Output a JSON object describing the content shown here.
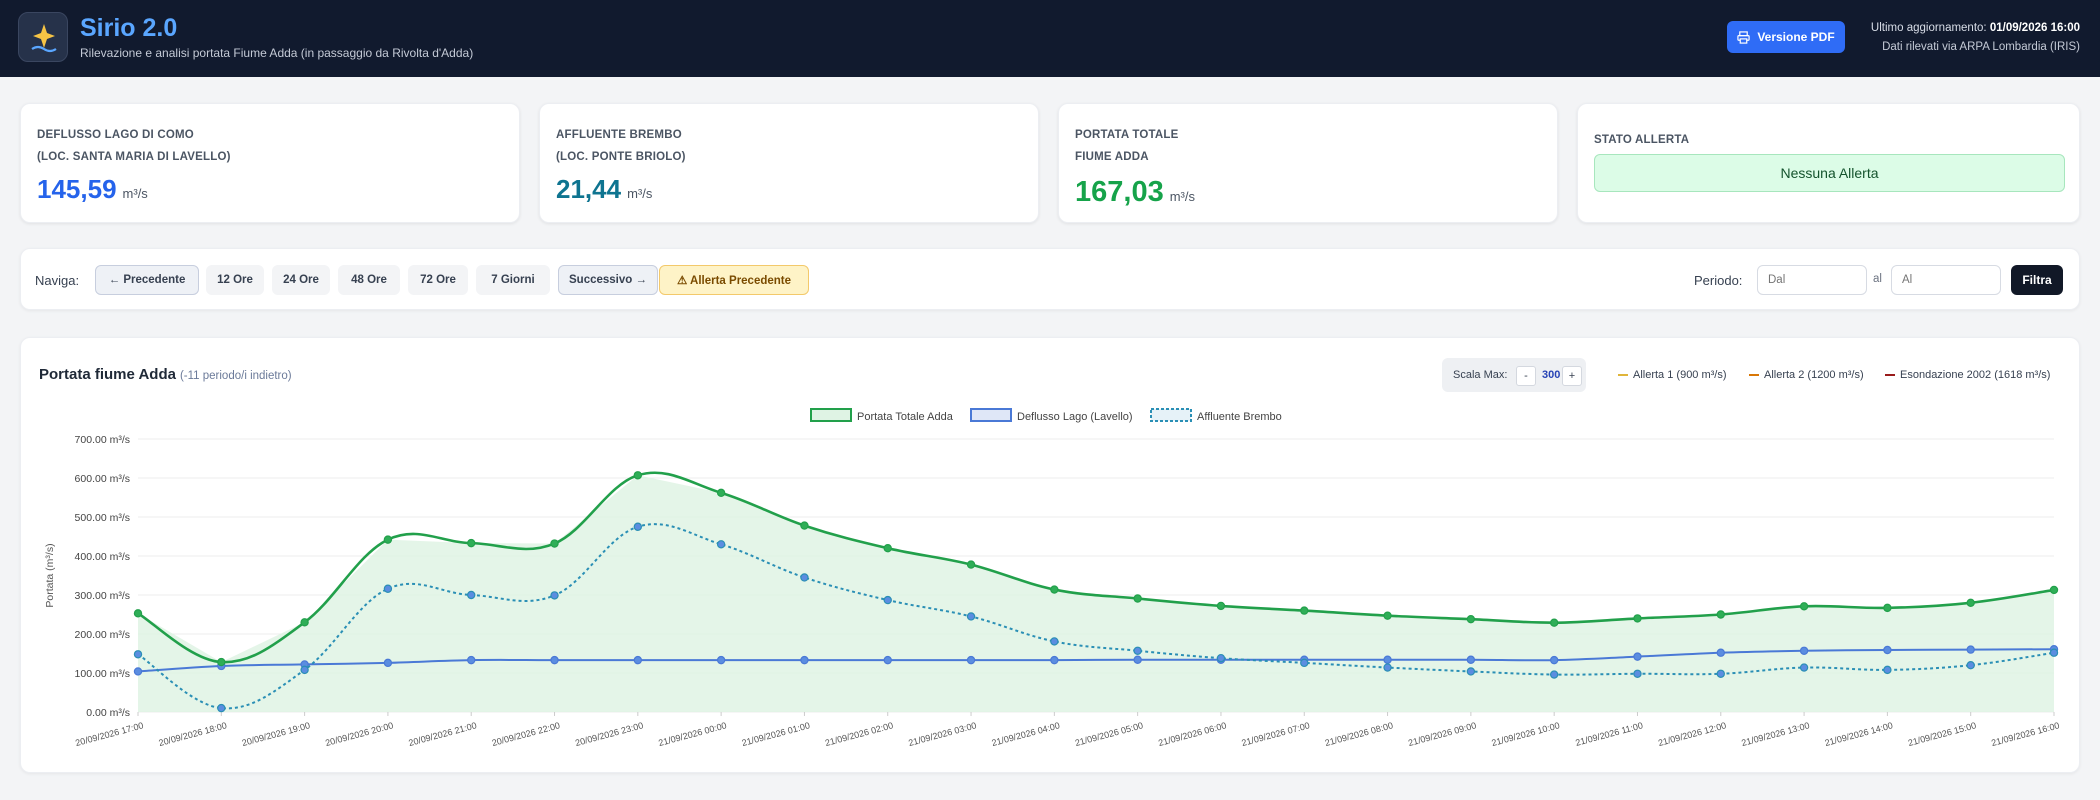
{
  "header": {
    "title": "Sirio 2.0",
    "subtitle": "Rilevazione e analisi portata Fiume Adda (in passaggio da Rivolta d'Adda)",
    "pdf_button": "Versione PDF",
    "last_update_label": "Ultimo aggiornamento:",
    "last_update_value": "01/09/2026 16:00",
    "source": "Dati rilevati via ARPA Lombardia (IRIS)",
    "logo_icon": "sparkle-wave-icon"
  },
  "cards": [
    {
      "label1": "DEFLUSSO LAGO DI COMO",
      "label2": "(LOC. SANTA MARIA DI LAVELLO)",
      "value": "145,59",
      "unit": "m³/s",
      "color": "#2563eb"
    },
    {
      "label1": "AFFLUENTE BREMBO",
      "label2": "(LOC. PONTE BRIOLO)",
      "value": "21,44",
      "unit": "m³/s",
      "color": "#0e7490"
    },
    {
      "label1": "PORTATA TOTALE",
      "label2": "FIUME ADDA",
      "value": "167,03",
      "unit": "m³/s",
      "color": "#16a34a"
    }
  ],
  "alert": {
    "label": "STATO ALLERTA",
    "status": "Nessuna Allerta"
  },
  "nav": {
    "label": "Naviga:",
    "prev": "← Precedente",
    "ranges": [
      "12 Ore",
      "24 Ore",
      "48 Ore",
      "72 Ore",
      "7 Giorni"
    ],
    "next": "Successivo →",
    "alert_prev": "⚠ Allerta Precedente",
    "period_label": "Periodo:",
    "from_placeholder": "Dal",
    "to_label": "al",
    "to_placeholder": "Al",
    "filter": "Filtra"
  },
  "chart_panel": {
    "title": "Portata fiume Adda",
    "subtitle": "(-11 periodo/i indietro)",
    "scale_label": "Scala Max:",
    "scale_minus": "-",
    "scale_value": "300",
    "scale_plus": "+",
    "alert_lines": [
      {
        "label": "Allerta 1 (900 m³/s)",
        "color": "#e0b53a"
      },
      {
        "label": "Allerta 2 (1200 m³/s)",
        "color": "#d97706"
      },
      {
        "label": "Esondazione 2002 (1618 m³/s)",
        "color": "#991b1b"
      }
    ]
  },
  "chart_data": {
    "type": "line",
    "ylabel": "Portata (m³/s)",
    "ylim": [
      0,
      700
    ],
    "y_ticks": [
      "0.00 m³/s",
      "100.00 m³/s",
      "200.00 m³/s",
      "300.00 m³/s",
      "400.00 m³/s",
      "500.00 m³/s",
      "600.00 m³/s",
      "700.00 m³/s"
    ],
    "x": [
      "20/09/2026 17:00",
      "20/09/2026 18:00",
      "20/09/2026 19:00",
      "20/09/2026 20:00",
      "20/09/2026 21:00",
      "20/09/2026 22:00",
      "20/09/2026 23:00",
      "21/09/2026 00:00",
      "21/09/2026 01:00",
      "21/09/2026 02:00",
      "21/09/2026 03:00",
      "21/09/2026 04:00",
      "21/09/2026 05:00",
      "21/09/2026 06:00",
      "21/09/2026 07:00",
      "21/09/2026 08:00",
      "21/09/2026 09:00",
      "21/09/2026 10:00",
      "21/09/2026 11:00",
      "21/09/2026 12:00",
      "21/09/2026 13:00",
      "21/09/2026 14:00",
      "21/09/2026 15:00",
      "21/09/2026 16:00"
    ],
    "series": [
      {
        "name": "Portata Totale Adda",
        "color": "#22a04b",
        "fill": "#dff3e4",
        "style": "solid",
        "values": [
          253,
          128,
          230,
          442,
          433,
          432,
          607,
          562,
          478,
          420,
          378,
          314,
          291,
          272,
          260,
          247,
          238,
          229,
          240,
          250,
          271,
          267,
          280,
          313
        ]
      },
      {
        "name": "Deflusso Lago (Lavello)",
        "color": "#4a79d6",
        "fill": "#dfe7f7",
        "style": "solid",
        "values": [
          104,
          118,
          122,
          126,
          133,
          133,
          133,
          133,
          133,
          133,
          133,
          133,
          134,
          134,
          134,
          134,
          134,
          133,
          142,
          152,
          157,
          159,
          160,
          161
        ]
      },
      {
        "name": "Affluente Brembo",
        "color": "#2a8fb5",
        "fill": "#e6f2f8",
        "style": "dashed",
        "values": [
          148,
          10,
          108,
          316,
          300,
          299,
          475,
          430,
          345,
          287,
          245,
          181,
          157,
          138,
          126,
          114,
          104,
          96,
          98,
          98,
          114,
          108,
          120,
          152
        ]
      }
    ],
    "legend_position": "top-center"
  }
}
